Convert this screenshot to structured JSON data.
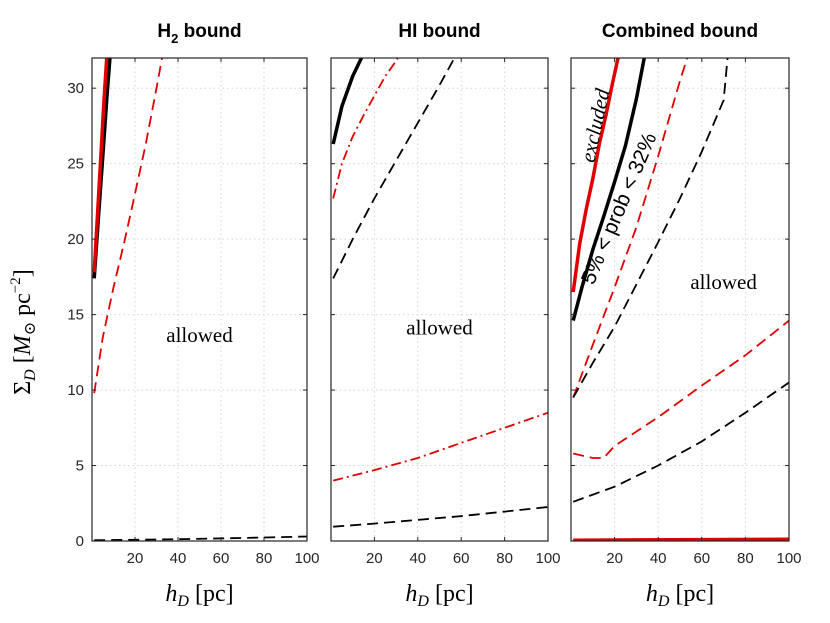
{
  "figure": {
    "ylabel": "Σ_D [M_⊙ pc^−2]",
    "ylabel_parts": {
      "sigma": "Σ",
      "sub": "D",
      "open": " [",
      "msym": "M",
      "msub": "⊙",
      "unit": " pc",
      "sup": "−2",
      "close": "]"
    },
    "xlabel_parts": {
      "h": "h",
      "sub": "D",
      "unit": " [pc]"
    }
  },
  "colors": {
    "black": "#000000",
    "red": "#e00000",
    "grid": "#d6d6d6",
    "axis": "#262626"
  },
  "chart_data": [
    {
      "type": "line",
      "title": "H₂ bound",
      "title_parts": {
        "main": "H",
        "sub": "2",
        "rest": " bound"
      },
      "xlabel": "h_D [pc]",
      "ylabel": "Σ_D [M_⊙ pc^−2]",
      "xlim": [
        0,
        100
      ],
      "ylim": [
        0,
        32
      ],
      "xticks": [
        20,
        40,
        60,
        80,
        100
      ],
      "yticks": [
        0,
        5,
        10,
        15,
        20,
        25,
        30
      ],
      "show_yticklabels": true,
      "grid": true,
      "annotations": [
        {
          "text": "allowed",
          "x": 50,
          "y": 13.5,
          "rotation": 0
        }
      ],
      "series": [
        {
          "name": "black solid",
          "color": "black",
          "style": "solid",
          "width": 3.5,
          "x": [
            1,
            3,
            5,
            7,
            8.5
          ],
          "y": [
            17.4,
            21.5,
            25.5,
            29.5,
            32.3
          ]
        },
        {
          "name": "red solid",
          "color": "red",
          "style": "solid",
          "width": 3.5,
          "x": [
            1,
            2.5,
            4,
            5.5,
            7
          ],
          "y": [
            17.8,
            21.5,
            25.2,
            29,
            32.3
          ]
        },
        {
          "name": "red dashed",
          "color": "red",
          "style": "dashed",
          "width": 1.8,
          "x": [
            1,
            5,
            10,
            15,
            20,
            25,
            30,
            33
          ],
          "y": [
            9.8,
            13.5,
            16.8,
            19.8,
            23,
            26.3,
            30,
            32.3
          ]
        },
        {
          "name": "black dashed",
          "color": "black",
          "style": "dashed",
          "width": 1.8,
          "x": [
            1,
            20,
            40,
            60,
            80,
            100
          ],
          "y": [
            0.05,
            0.08,
            0.12,
            0.17,
            0.23,
            0.3
          ]
        }
      ]
    },
    {
      "type": "line",
      "title": "HI  bound",
      "title_parts": {
        "main": "HI  bound",
        "sub": "",
        "rest": ""
      },
      "xlabel": "h_D [pc]",
      "ylabel": "",
      "xlim": [
        0,
        100
      ],
      "ylim": [
        0,
        32
      ],
      "xticks": [
        20,
        40,
        60,
        80,
        100
      ],
      "yticks": [
        0,
        5,
        10,
        15,
        20,
        25,
        30
      ],
      "show_yticklabels": false,
      "grid": true,
      "annotations": [
        {
          "text": "allowed",
          "x": 50,
          "y": 14,
          "rotation": 0
        }
      ],
      "series": [
        {
          "name": "black solid",
          "color": "black",
          "style": "solid",
          "width": 3.5,
          "x": [
            1,
            5,
            10,
            15
          ],
          "y": [
            26.3,
            28.8,
            30.8,
            32.3
          ]
        },
        {
          "name": "red dash-dot upper",
          "color": "red",
          "style": "dashdot",
          "width": 1.8,
          "x": [
            1,
            5,
            10,
            15,
            20,
            25,
            30,
            32
          ],
          "y": [
            22.7,
            25,
            26.8,
            28.2,
            29.5,
            30.8,
            31.8,
            32.3
          ]
        },
        {
          "name": "black dashed upper",
          "color": "black",
          "style": "dashed",
          "width": 1.8,
          "x": [
            1,
            10,
            20,
            30,
            40,
            50,
            58
          ],
          "y": [
            17.4,
            20,
            22.7,
            25.2,
            27.7,
            30.2,
            32.3
          ]
        },
        {
          "name": "red dash-dot lower",
          "color": "red",
          "style": "dashdot",
          "width": 1.8,
          "x": [
            1,
            20,
            40,
            60,
            80,
            100
          ],
          "y": [
            4,
            4.7,
            5.5,
            6.5,
            7.5,
            8.5
          ]
        },
        {
          "name": "black dashed lower",
          "color": "black",
          "style": "dashed",
          "width": 1.8,
          "x": [
            1,
            20,
            40,
            60,
            80,
            100
          ],
          "y": [
            0.95,
            1.15,
            1.4,
            1.65,
            1.95,
            2.25
          ]
        }
      ]
    },
    {
      "type": "line",
      "title": "Combined bound",
      "title_parts": {
        "main": "Combined bound",
        "sub": "",
        "rest": ""
      },
      "xlabel": "h_D [pc]",
      "ylabel": "",
      "xlim": [
        0,
        100
      ],
      "ylim": [
        0,
        32
      ],
      "xticks": [
        20,
        40,
        60,
        80,
        100
      ],
      "yticks": [
        0,
        5,
        10,
        15,
        20,
        25,
        30
      ],
      "show_yticklabels": false,
      "grid": true,
      "annotations": [
        {
          "text": "allowed",
          "x": 70,
          "y": 17,
          "rotation": 0
        },
        {
          "text": "excluded",
          "x": 12,
          "y": 27.5,
          "rotation": -78
        },
        {
          "text": "5% < prob < 32%",
          "x": 22.5,
          "y": 22,
          "rotation": -67
        }
      ],
      "series": [
        {
          "name": "red solid",
          "color": "red",
          "style": "solid",
          "width": 3.5,
          "x": [
            1,
            4,
            7,
            10,
            13,
            16,
            19,
            22
          ],
          "y": [
            16.5,
            19.7,
            22,
            24,
            26.3,
            28.2,
            30.3,
            32.3
          ]
        },
        {
          "name": "black solid",
          "color": "black",
          "style": "solid",
          "width": 3.5,
          "x": [
            1,
            5,
            10,
            15,
            20,
            25,
            30,
            34
          ],
          "y": [
            14.6,
            16.8,
            19.3,
            21.5,
            23.8,
            26.2,
            29.3,
            32.3
          ]
        },
        {
          "name": "red dashed upper",
          "color": "red",
          "style": "dashed",
          "width": 1.8,
          "x": [
            1,
            10,
            20,
            30,
            40,
            50,
            54
          ],
          "y": [
            9.5,
            13,
            16.8,
            20.8,
            25.5,
            30.5,
            32.3
          ]
        },
        {
          "name": "black dashed upper",
          "color": "black",
          "style": "dashed",
          "width": 1.8,
          "x": [
            1,
            10,
            20,
            30,
            40,
            50,
            60,
            70,
            72
          ],
          "y": [
            9.5,
            11.8,
            14.2,
            17,
            19.8,
            22.7,
            25.8,
            29.2,
            32.3
          ]
        },
        {
          "name": "red dashed lower",
          "color": "red",
          "style": "dashed",
          "width": 1.8,
          "x": [
            1,
            10,
            15,
            20,
            40,
            60,
            80,
            100
          ],
          "y": [
            5.8,
            5.5,
            5.5,
            6.3,
            8.2,
            10.3,
            12.3,
            14.6
          ]
        },
        {
          "name": "black dashed lower",
          "color": "black",
          "style": "dashed",
          "width": 1.8,
          "x": [
            1,
            20,
            40,
            60,
            80,
            100
          ],
          "y": [
            2.6,
            3.6,
            5,
            6.6,
            8.5,
            10.5
          ]
        },
        {
          "name": "red solid bottom",
          "color": "red",
          "style": "solid",
          "width": 3.5,
          "x": [
            1,
            100
          ],
          "y": [
            0.05,
            0.12
          ]
        }
      ]
    }
  ]
}
